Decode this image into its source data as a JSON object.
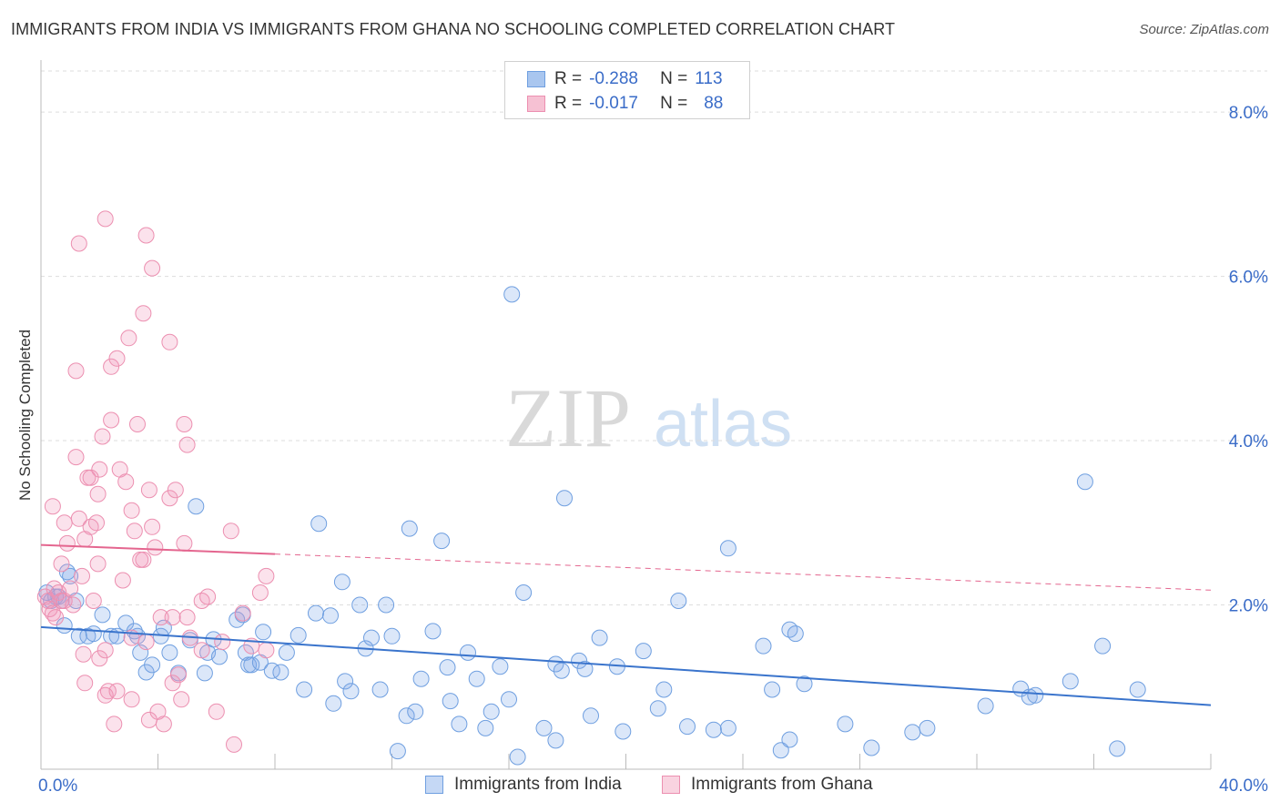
{
  "title": "IMMIGRANTS FROM INDIA VS IMMIGRANTS FROM GHANA NO SCHOOLING COMPLETED CORRELATION CHART",
  "source": "Source: ZipAtlas.com",
  "watermark": {
    "zip": "ZIP",
    "atlas": "atlas"
  },
  "stats": [
    {
      "r_label": "R =",
      "r": "-0.288",
      "n_label": "N =",
      "n": "113",
      "color": "#a9c6ef",
      "border": "#6f9fe0"
    },
    {
      "r_label": "R =",
      "r": "-0.017",
      "n_label": "N =",
      "n": "88",
      "color": "#f6c1d3",
      "border": "#ec8fb0"
    }
  ],
  "legend": [
    {
      "label": "Immigrants from India",
      "color": "#c5d8f5",
      "border": "#6f9fe0"
    },
    {
      "label": "Immigrants from Ghana",
      "color": "#f9d3e0",
      "border": "#ec8fb0"
    }
  ],
  "chart_data": {
    "type": "scatter",
    "xlabel": "",
    "ylabel": "No Schooling Completed",
    "xlim": [
      0,
      40
    ],
    "ylim": [
      0,
      8.5
    ],
    "x_ticks": [
      "0.0%",
      "40.0%"
    ],
    "y_ticks": [
      {
        "v": 8,
        "label": "8.0%"
      },
      {
        "v": 6,
        "label": "6.0%"
      },
      {
        "v": 4,
        "label": "4.0%"
      },
      {
        "v": 2,
        "label": "2.0%"
      }
    ],
    "grid": true,
    "series": [
      {
        "name": "Immigrants from India",
        "color": "#6f9fe0",
        "fill": "rgba(125,170,232,0.28)",
        "line_color": "#3a74cc",
        "trend": {
          "x0": 0,
          "y0": 1.73,
          "x1": 40,
          "y1": 0.78,
          "solid_to": 40
        },
        "points": [
          [
            0.2,
            2.15
          ],
          [
            0.35,
            2.05
          ],
          [
            0.5,
            2.1
          ],
          [
            0.6,
            2.1
          ],
          [
            0.7,
            2.05
          ],
          [
            0.8,
            1.75
          ],
          [
            0.9,
            2.4
          ],
          [
            1.0,
            2.35
          ],
          [
            1.2,
            2.05
          ],
          [
            1.3,
            1.62
          ],
          [
            1.6,
            1.62
          ],
          [
            1.8,
            1.65
          ],
          [
            2.1,
            1.88
          ],
          [
            2.4,
            1.62
          ],
          [
            2.6,
            1.62
          ],
          [
            2.9,
            1.78
          ],
          [
            3.3,
            1.62
          ],
          [
            3.2,
            1.68
          ],
          [
            3.4,
            1.42
          ],
          [
            3.6,
            1.18
          ],
          [
            3.8,
            1.27
          ],
          [
            4.1,
            1.62
          ],
          [
            4.2,
            1.72
          ],
          [
            4.4,
            1.42
          ],
          [
            4.7,
            1.17
          ],
          [
            5.1,
            1.57
          ],
          [
            5.3,
            3.2
          ],
          [
            5.6,
            1.17
          ],
          [
            5.7,
            1.42
          ],
          [
            5.9,
            1.58
          ],
          [
            6.1,
            1.37
          ],
          [
            6.7,
            1.82
          ],
          [
            6.9,
            1.88
          ],
          [
            7.0,
            1.42
          ],
          [
            7.1,
            1.27
          ],
          [
            7.2,
            1.27
          ],
          [
            7.5,
            1.3
          ],
          [
            7.6,
            1.67
          ],
          [
            7.9,
            1.2
          ],
          [
            8.2,
            1.18
          ],
          [
            8.4,
            1.42
          ],
          [
            8.8,
            1.63
          ],
          [
            9.0,
            0.97
          ],
          [
            9.4,
            1.9
          ],
          [
            9.5,
            2.99
          ],
          [
            9.9,
            1.87
          ],
          [
            10.0,
            0.8
          ],
          [
            10.3,
            2.28
          ],
          [
            10.4,
            1.07
          ],
          [
            10.6,
            0.95
          ],
          [
            10.9,
            2.0
          ],
          [
            11.1,
            1.47
          ],
          [
            11.3,
            1.6
          ],
          [
            11.6,
            0.97
          ],
          [
            11.8,
            2.0
          ],
          [
            12.0,
            1.62
          ],
          [
            12.2,
            0.22
          ],
          [
            12.5,
            0.65
          ],
          [
            12.6,
            2.93
          ],
          [
            12.8,
            0.7
          ],
          [
            13.0,
            1.1
          ],
          [
            13.4,
            1.68
          ],
          [
            13.7,
            2.78
          ],
          [
            14.0,
            0.83
          ],
          [
            13.9,
            1.24
          ],
          [
            14.3,
            0.55
          ],
          [
            14.6,
            1.42
          ],
          [
            14.9,
            1.1
          ],
          [
            15.2,
            0.5
          ],
          [
            15.4,
            0.7
          ],
          [
            15.7,
            1.25
          ],
          [
            16.0,
            0.85
          ],
          [
            16.3,
            0.15
          ],
          [
            16.1,
            5.78
          ],
          [
            16.5,
            2.15
          ],
          [
            17.2,
            0.5
          ],
          [
            17.6,
            0.35
          ],
          [
            17.6,
            1.28
          ],
          [
            17.8,
            1.2
          ],
          [
            17.9,
            3.3
          ],
          [
            18.4,
            1.32
          ],
          [
            18.6,
            1.22
          ],
          [
            18.8,
            0.65
          ],
          [
            19.1,
            1.6
          ],
          [
            19.7,
            1.25
          ],
          [
            19.9,
            0.46
          ],
          [
            20.6,
            1.44
          ],
          [
            21.1,
            0.74
          ],
          [
            21.3,
            0.97
          ],
          [
            21.8,
            2.05
          ],
          [
            22.1,
            0.52
          ],
          [
            23.0,
            0.48
          ],
          [
            23.5,
            0.5
          ],
          [
            23.5,
            2.69
          ],
          [
            24.7,
            1.5
          ],
          [
            25.0,
            0.97
          ],
          [
            25.3,
            0.23
          ],
          [
            25.6,
            0.36
          ],
          [
            25.6,
            1.7
          ],
          [
            25.8,
            1.65
          ],
          [
            26.1,
            1.04
          ],
          [
            27.5,
            0.55
          ],
          [
            28.4,
            0.26
          ],
          [
            29.8,
            0.45
          ],
          [
            30.3,
            0.5
          ],
          [
            32.3,
            0.77
          ],
          [
            33.5,
            0.98
          ],
          [
            33.8,
            0.88
          ],
          [
            34.0,
            0.9
          ],
          [
            35.2,
            1.07
          ],
          [
            35.7,
            3.5
          ],
          [
            36.3,
            1.5
          ],
          [
            36.8,
            0.25
          ],
          [
            37.5,
            0.97
          ]
        ]
      },
      {
        "name": "Immigrants from Ghana",
        "color": "#ec8fb0",
        "fill": "rgba(240,150,185,0.28)",
        "line_color": "#e4668f",
        "trend": {
          "x0": 0,
          "y0": 2.73,
          "x1": 40,
          "y1": 2.18,
          "solid_to": 8
        },
        "points": [
          [
            0.15,
            2.1
          ],
          [
            0.25,
            2.05
          ],
          [
            0.3,
            1.95
          ],
          [
            0.4,
            1.9
          ],
          [
            0.45,
            2.2
          ],
          [
            0.5,
            1.85
          ],
          [
            0.6,
            2.15
          ],
          [
            0.7,
            2.05
          ],
          [
            0.8,
            2.05
          ],
          [
            0.4,
            3.2
          ],
          [
            0.7,
            2.5
          ],
          [
            0.8,
            3.0
          ],
          [
            0.9,
            2.75
          ],
          [
            1.0,
            2.2
          ],
          [
            1.1,
            2.0
          ],
          [
            1.2,
            3.8
          ],
          [
            1.3,
            3.05
          ],
          [
            1.4,
            2.35
          ],
          [
            1.5,
            2.8
          ],
          [
            1.45,
            1.4
          ],
          [
            1.5,
            1.05
          ],
          [
            1.6,
            3.55
          ],
          [
            1.7,
            2.95
          ],
          [
            1.8,
            2.05
          ],
          [
            1.9,
            3.0
          ],
          [
            1.95,
            2.5
          ],
          [
            2.0,
            3.65
          ],
          [
            1.95,
            3.35
          ],
          [
            2.1,
            4.05
          ],
          [
            2.0,
            1.35
          ],
          [
            2.2,
            1.45
          ],
          [
            2.3,
            0.95
          ],
          [
            2.2,
            0.9
          ],
          [
            2.4,
            4.9
          ],
          [
            2.5,
            0.55
          ],
          [
            2.6,
            0.95
          ],
          [
            2.7,
            3.65
          ],
          [
            2.8,
            2.3
          ],
          [
            2.9,
            3.5
          ],
          [
            3.0,
            5.25
          ],
          [
            3.1,
            3.15
          ],
          [
            3.1,
            0.85
          ],
          [
            3.1,
            1.6
          ],
          [
            3.2,
            2.9
          ],
          [
            3.3,
            4.2
          ],
          [
            3.4,
            2.55
          ],
          [
            3.5,
            2.55
          ],
          [
            3.6,
            1.55
          ],
          [
            3.7,
            3.4
          ],
          [
            3.7,
            0.6
          ],
          [
            3.8,
            2.95
          ],
          [
            3.9,
            2.7
          ],
          [
            4.1,
            1.85
          ],
          [
            4.2,
            0.55
          ],
          [
            4.0,
            0.7
          ],
          [
            4.4,
            3.3
          ],
          [
            4.5,
            1.85
          ],
          [
            4.5,
            1.05
          ],
          [
            4.6,
            3.4
          ],
          [
            4.7,
            1.15
          ],
          [
            4.8,
            0.85
          ],
          [
            4.9,
            2.75
          ],
          [
            5.0,
            1.85
          ],
          [
            5.1,
            1.6
          ],
          [
            5.5,
            2.05
          ],
          [
            5.5,
            1.45
          ],
          [
            5.7,
            2.1
          ],
          [
            6.0,
            0.7
          ],
          [
            6.2,
            1.55
          ],
          [
            6.5,
            2.9
          ],
          [
            6.6,
            0.3
          ],
          [
            6.9,
            1.9
          ],
          [
            7.2,
            1.5
          ],
          [
            7.5,
            2.15
          ],
          [
            7.7,
            2.35
          ],
          [
            7.7,
            1.45
          ],
          [
            1.3,
            6.4
          ],
          [
            2.2,
            6.7
          ],
          [
            3.6,
            6.5
          ],
          [
            3.8,
            6.1
          ],
          [
            3.5,
            5.55
          ],
          [
            4.4,
            5.2
          ],
          [
            4.9,
            4.2
          ],
          [
            5.0,
            3.95
          ],
          [
            2.4,
            4.25
          ],
          [
            2.6,
            5.0
          ],
          [
            1.2,
            4.85
          ],
          [
            1.7,
            3.55
          ]
        ]
      }
    ]
  }
}
